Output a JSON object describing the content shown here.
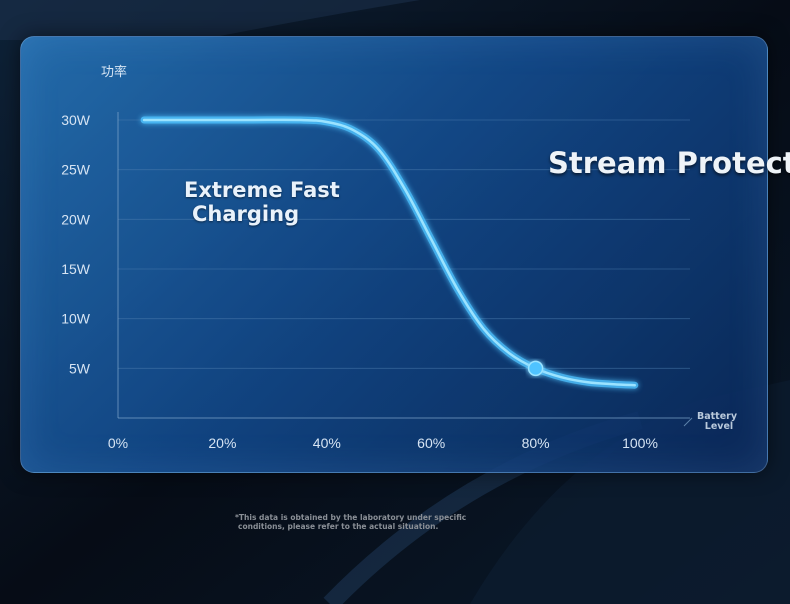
{
  "chart_data": {
    "type": "line",
    "title": "功率",
    "xlabel_lines": [
      "Battery",
      "Level"
    ],
    "x_ticks": [
      "0%",
      "20%",
      "40%",
      "60%",
      "80%",
      "100%"
    ],
    "y_ticks": [
      "5W",
      "10W",
      "15W",
      "20W",
      "25W",
      "30W"
    ],
    "xlim": [
      0,
      100
    ],
    "ylim": [
      0,
      30
    ],
    "grid": true,
    "series": [
      {
        "x": [
          5,
          15,
          25,
          35,
          40,
          45,
          50,
          55,
          60,
          65,
          70,
          75,
          80,
          85,
          90,
          95,
          99
        ],
        "y": [
          30,
          30,
          30,
          30,
          29.8,
          29,
          27,
          23,
          18,
          13,
          9,
          6.5,
          5,
          4.1,
          3.6,
          3.4,
          3.3
        ]
      }
    ],
    "highlight_point": {
      "x": 80,
      "y": 5
    },
    "annotations": {
      "fast": [
        "Extreme Fast",
        "Charging"
      ],
      "stream": "Stream Protect"
    }
  },
  "footnote": [
    "*This data is obtained by the laboratory under specific",
    "conditions, please refer to the actual situation."
  ],
  "colors": {
    "curve": "#4fc3ff",
    "curve_glow": "#9be3ff",
    "grid": "#4f7fb0",
    "tick_text": "#d6e4f3"
  }
}
